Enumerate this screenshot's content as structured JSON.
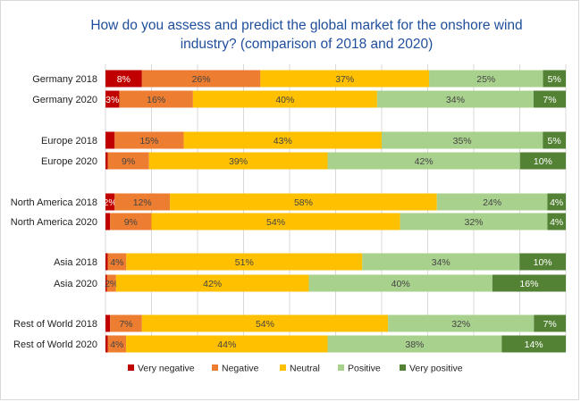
{
  "chart_data": {
    "type": "bar",
    "orientation": "horizontal",
    "stacked": "100%",
    "title_lines": [
      "How do you assess and predict the global market for the onshore wind",
      "industry? (comparison of 2018 and 2020)"
    ],
    "categories": [
      "Germany 2018",
      "Germany 2020",
      "Europe 2018",
      "Europe 2020",
      "North America 2018",
      "North America 2020",
      "Asia 2018",
      "Asia 2020",
      "Rest of World 2018",
      "Rest of World 2020"
    ],
    "series": [
      {
        "name": "Very negative",
        "color": "#c00000",
        "values": [
          8,
          3,
          2,
          0.5,
          2,
          1,
          0.5,
          0.3,
          1,
          0.5
        ],
        "labels": [
          "8%",
          "3%",
          "",
          "",
          "2%",
          "",
          "",
          "",
          "",
          ""
        ]
      },
      {
        "name": "Negative",
        "color": "#ed7d31",
        "values": [
          26,
          16,
          15,
          9,
          12,
          9,
          4,
          2,
          7,
          4
        ],
        "labels": [
          "26%",
          "16%",
          "15%",
          "9%",
          "12%",
          "9%",
          "4%",
          "2%",
          "7%",
          "4%"
        ]
      },
      {
        "name": "Neutral",
        "color": "#ffc000",
        "values": [
          37,
          40,
          43,
          39,
          58,
          54,
          51,
          42,
          54,
          44
        ],
        "labels": [
          "37%",
          "40%",
          "43%",
          "39%",
          "58%",
          "54%",
          "51%",
          "42%",
          "54%",
          "44%"
        ]
      },
      {
        "name": "Positive",
        "color": "#a9d18e",
        "values": [
          25,
          34,
          35,
          42,
          24,
          32,
          34,
          40,
          32,
          38
        ],
        "labels": [
          "25%",
          "34%",
          "35%",
          "42%",
          "24%",
          "32%",
          "34%",
          "40%",
          "32%",
          "38%"
        ]
      },
      {
        "name": "Very positive",
        "color": "#548235",
        "values": [
          5,
          7,
          5,
          10,
          4,
          4,
          10,
          16,
          7,
          14
        ],
        "labels": [
          "5%",
          "7%",
          "5%",
          "10%",
          "4%",
          "4%",
          "10%",
          "16%",
          "7%",
          "14%"
        ]
      }
    ],
    "xlim": [
      0,
      100
    ],
    "grid": true,
    "legend_position": "bottom"
  }
}
